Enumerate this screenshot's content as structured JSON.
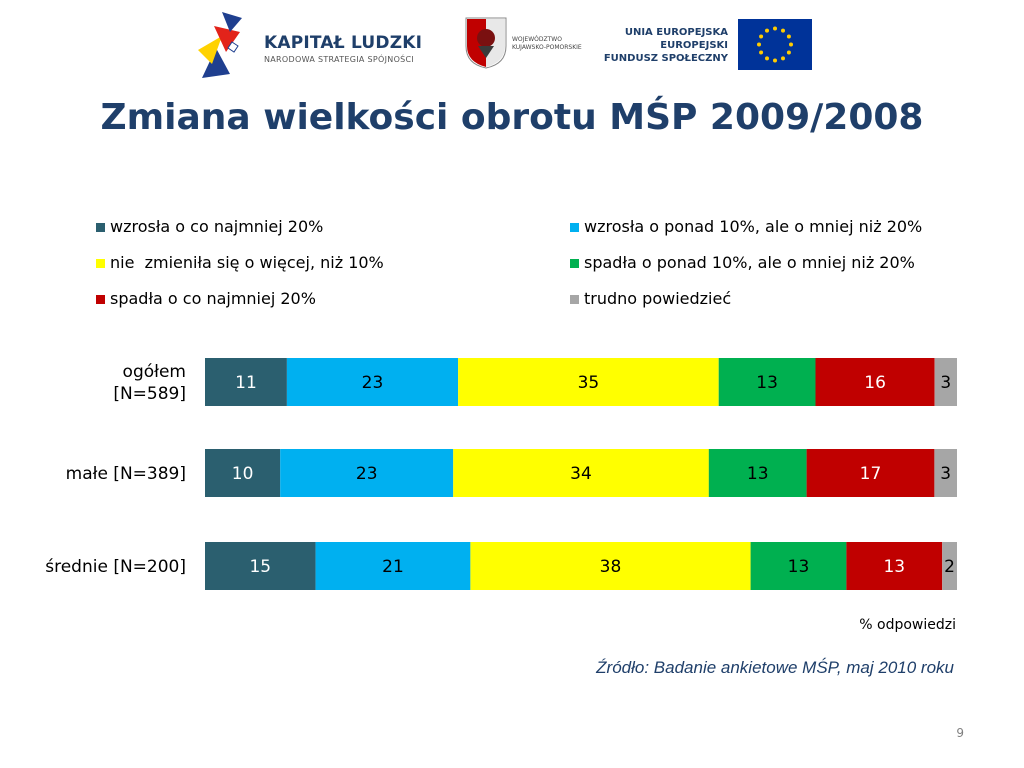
{
  "header": {
    "kapital_ludzki": "KAPITAŁ LUDZKI",
    "kapital_ludzki_sub": "NARODOWA STRATEGIA SPÓJNOŚCI",
    "region_line1": "WOJEWÓDZTWO",
    "region_line2": "KUJAWSKO-POMORSKIE",
    "eu_line1": "UNIA EUROPEJSKA",
    "eu_line2": "EUROPEJSKI",
    "eu_line3": "FUNDUSZ SPOŁECZNY"
  },
  "slide": {
    "title": "Zmiana wielkości obrotu MŚP 2009/2008",
    "unit_note": "% odpowiedzi",
    "source": "Źródło: Badanie ankietowe MŚP, maj 2010 roku",
    "page_number": "9"
  },
  "colors": {
    "title": "#1f3f6a",
    "series": [
      "#2b5f6f",
      "#00b0f0",
      "#ffff00",
      "#00b050",
      "#c00000",
      "#a6a6a6"
    ]
  },
  "chart_data": {
    "type": "bar",
    "orientation": "horizontal",
    "stacked": true,
    "percent_of_total": true,
    "categories": [
      [
        "ogółem",
        "[N=589]"
      ],
      [
        "małe [N=389]"
      ],
      [
        "średnie [N=200]"
      ]
    ],
    "series": [
      {
        "name": "wzrosła o co najmniej 20%",
        "values": [
          11,
          10,
          15
        ],
        "color": "#2b5f6f"
      },
      {
        "name": "wzrosła o ponad 10%, ale o mniej niż 20%",
        "values": [
          23,
          23,
          21
        ],
        "color": "#00b0f0"
      },
      {
        "name": "nie  zmieniła się o więcej, niż 10%",
        "values": [
          35,
          34,
          38
        ],
        "color": "#ffff00"
      },
      {
        "name": "spadła o ponad 10%, ale o mniej niż 20%",
        "values": [
          13,
          13,
          13
        ],
        "color": "#00b050"
      },
      {
        "name": "spadła o co najmniej 20%",
        "values": [
          16,
          17,
          13
        ],
        "color": "#c00000"
      },
      {
        "name": "trudno powiedzieć",
        "values": [
          3,
          3,
          2
        ],
        "color": "#a6a6a6"
      }
    ],
    "legend_position": "top",
    "grid": false
  }
}
